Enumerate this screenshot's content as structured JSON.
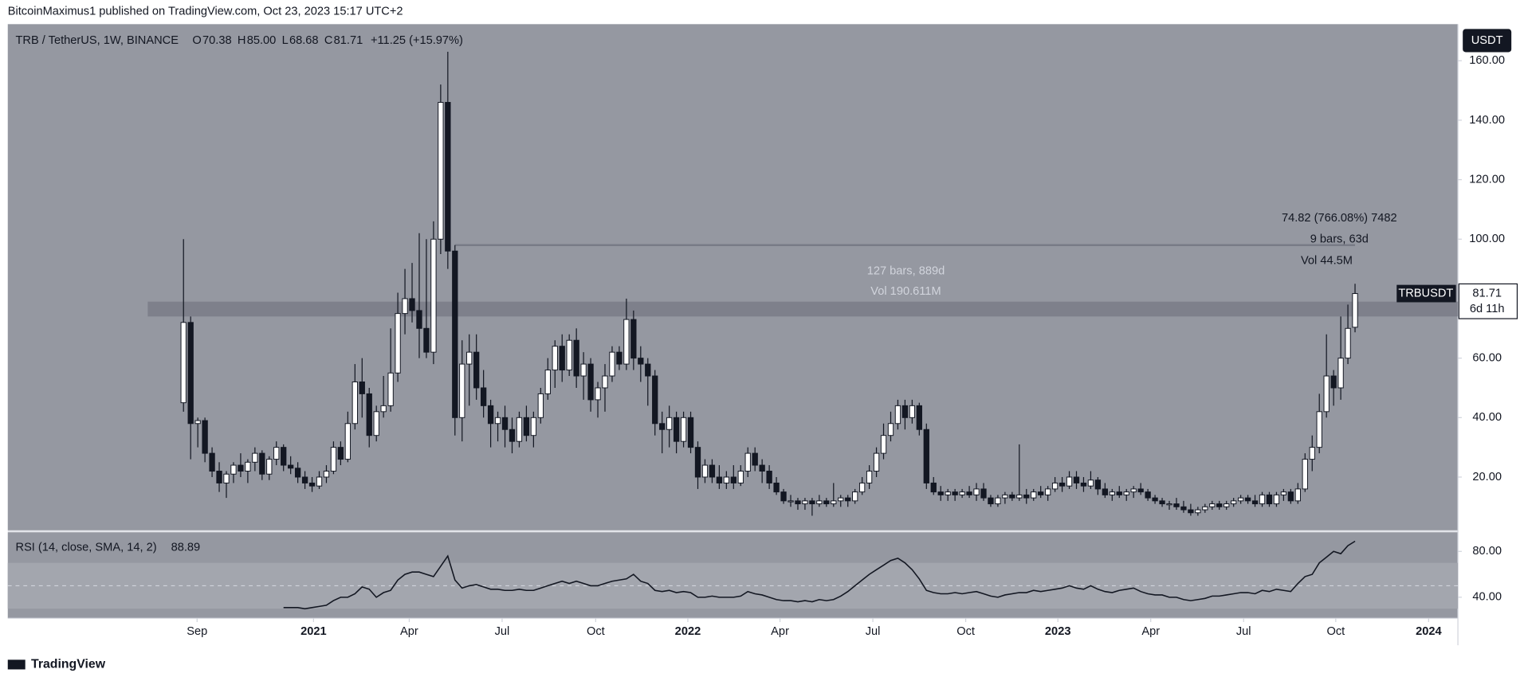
{
  "header": "BitcoinMaximus1 published on TradingView.com, Oct 23, 2023 15:17 UTC+2",
  "footer": "TradingView",
  "currency_button": "USDT",
  "chart_data": {
    "type": "candlestick",
    "symbol": "TRB / TetherUS, 1W, BINANCE",
    "ohlc_legend": [
      {
        "label": "O",
        "value": "70.38"
      },
      {
        "label": "H",
        "value": "85.00"
      },
      {
        "label": "L",
        "value": "68.68"
      },
      {
        "label": "C",
        "value": "81.71"
      }
    ],
    "change": "+11.25 (+15.97%)",
    "up_color": "#ffffff",
    "down_color": "#131722",
    "open": [
      45,
      72,
      38,
      39,
      28,
      22,
      18,
      21,
      24,
      22,
      25,
      28,
      21,
      26,
      30,
      24,
      23,
      20,
      18,
      17,
      20,
      22,
      30,
      26,
      38,
      52,
      48,
      34,
      42,
      44,
      55,
      75,
      80,
      76,
      70,
      62,
      100,
      146,
      96,
      40,
      58,
      62,
      50,
      44,
      38,
      40,
      36,
      32,
      40,
      34,
      40,
      48,
      56,
      64,
      56,
      66,
      54,
      58,
      46,
      50,
      54,
      62,
      58,
      73,
      60,
      58,
      54,
      38,
      36,
      40,
      32,
      40,
      30,
      20,
      24,
      20,
      18,
      20,
      18,
      22,
      28,
      24,
      22,
      18,
      15,
      12,
      12,
      11,
      12,
      11,
      12,
      11,
      12,
      13,
      12,
      15,
      18,
      22,
      28,
      34,
      38,
      44,
      40,
      44,
      36,
      18,
      15,
      14,
      15,
      14,
      15,
      14,
      16,
      13,
      11,
      13,
      14,
      13,
      14,
      13,
      15,
      14,
      16,
      18,
      17,
      20,
      18,
      17,
      19,
      16,
      14,
      15,
      14,
      15,
      16,
      15,
      13,
      12,
      11,
      11,
      10,
      9,
      8,
      9,
      10,
      11,
      10,
      11,
      12,
      13,
      12,
      11,
      14,
      11,
      14,
      15,
      12,
      16,
      26,
      30,
      42,
      54,
      50,
      60,
      70.38
    ],
    "high": [
      100,
      74,
      40,
      40,
      30,
      25,
      22,
      25,
      28,
      26,
      30,
      29,
      27,
      32,
      31,
      27,
      25,
      22,
      20,
      22,
      24,
      32,
      32,
      42,
      58,
      60,
      50,
      44,
      54,
      70,
      82,
      90,
      92,
      102,
      100,
      106,
      152,
      163,
      98,
      66,
      68,
      68,
      56,
      46,
      42,
      44,
      40,
      42,
      44,
      42,
      50,
      60,
      66,
      68,
      68,
      70,
      62,
      60,
      52,
      58,
      64,
      64,
      80,
      76,
      64,
      60,
      56,
      42,
      44,
      42,
      42,
      42,
      32,
      26,
      26,
      24,
      22,
      24,
      24,
      30,
      30,
      26,
      24,
      20,
      16,
      14,
      13,
      13,
      13,
      14,
      13,
      18,
      14,
      14,
      16,
      20,
      24,
      30,
      38,
      42,
      46,
      46,
      46,
      45,
      38,
      20,
      17,
      16,
      16,
      16,
      17,
      18,
      18,
      14,
      14,
      15,
      15,
      31,
      16,
      16,
      17,
      17,
      20,
      20,
      22,
      22,
      20,
      22,
      20,
      18,
      16,
      17,
      16,
      17,
      18,
      16,
      14,
      13,
      12,
      13,
      12,
      11,
      10,
      11,
      12,
      12,
      12,
      13,
      14,
      14,
      14,
      15,
      15,
      15,
      16,
      16,
      18,
      28,
      34,
      48,
      68,
      56,
      74,
      78,
      85.0
    ],
    "low": [
      42,
      26,
      30,
      25,
      20,
      15,
      13,
      18,
      20,
      18,
      22,
      19,
      19,
      24,
      22,
      21,
      18,
      16,
      15,
      16,
      18,
      21,
      24,
      25,
      36,
      40,
      30,
      32,
      40,
      42,
      52,
      68,
      72,
      60,
      60,
      58,
      95,
      90,
      34,
      32,
      44,
      46,
      40,
      30,
      32,
      30,
      28,
      30,
      32,
      30,
      38,
      46,
      50,
      52,
      54,
      50,
      46,
      42,
      40,
      42,
      52,
      56,
      56,
      56,
      52,
      44,
      34,
      28,
      30,
      28,
      30,
      28,
      16,
      18,
      18,
      16,
      16,
      16,
      17,
      20,
      22,
      18,
      16,
      14,
      11,
      10,
      9,
      9,
      7,
      10,
      10,
      10,
      10,
      10,
      11,
      14,
      16,
      20,
      26,
      32,
      36,
      36,
      38,
      34,
      16,
      14,
      12,
      12,
      12,
      13,
      13,
      12,
      12,
      10,
      10,
      11,
      12,
      12,
      11,
      12,
      13,
      12,
      15,
      15,
      16,
      16,
      15,
      16,
      14,
      13,
      12,
      13,
      12,
      13,
      14,
      12,
      11,
      10,
      9,
      9,
      8,
      7,
      7,
      8,
      9,
      9,
      9,
      10,
      11,
      11,
      10,
      10,
      10,
      10,
      12,
      11,
      11,
      15,
      22,
      28,
      40,
      44,
      46,
      58,
      68.68
    ],
    "close": [
      72,
      38,
      39,
      28,
      22,
      18,
      21,
      24,
      22,
      25,
      28,
      21,
      26,
      30,
      24,
      23,
      20,
      18,
      17,
      20,
      22,
      30,
      26,
      38,
      52,
      48,
      34,
      42,
      44,
      55,
      75,
      80,
      76,
      70,
      62,
      100,
      146,
      96,
      40,
      58,
      62,
      50,
      44,
      38,
      40,
      36,
      32,
      40,
      34,
      40,
      48,
      56,
      64,
      56,
      66,
      54,
      58,
      46,
      50,
      54,
      62,
      58,
      73,
      60,
      58,
      54,
      38,
      36,
      40,
      32,
      40,
      30,
      20,
      24,
      20,
      18,
      20,
      18,
      22,
      28,
      24,
      22,
      18,
      15,
      12,
      12,
      11,
      12,
      11,
      12,
      11,
      12,
      13,
      12,
      15,
      18,
      22,
      28,
      34,
      38,
      44,
      40,
      44,
      36,
      18,
      15,
      14,
      15,
      14,
      15,
      14,
      16,
      13,
      11,
      13,
      14,
      13,
      14,
      13,
      15,
      14,
      16,
      18,
      17,
      20,
      18,
      17,
      19,
      16,
      14,
      15,
      14,
      15,
      16,
      15,
      13,
      12,
      11,
      11,
      10,
      9,
      8,
      9,
      10,
      11,
      10,
      11,
      12,
      13,
      12,
      11,
      14,
      11,
      14,
      15,
      12,
      16,
      26,
      30,
      42,
      54,
      50,
      60,
      70,
      81.71
    ],
    "xlim": [
      -24.6,
      178.4
    ],
    "xticks": [
      {
        "value": 1.9,
        "label": "Sep"
      },
      {
        "value": 18.2,
        "label": "2021"
      },
      {
        "value": 31.6,
        "label": "Apr"
      },
      {
        "value": 44.6,
        "label": "Jul"
      },
      {
        "value": 57.7,
        "label": "Oct"
      },
      {
        "value": 70.6,
        "label": "2022"
      },
      {
        "value": 83.5,
        "label": "Apr"
      },
      {
        "value": 96.5,
        "label": "Jul"
      },
      {
        "value": 109.5,
        "label": "Oct"
      },
      {
        "value": 122.4,
        "label": "2023"
      },
      {
        "value": 135.4,
        "label": "Apr"
      },
      {
        "value": 148.4,
        "label": "Jul"
      },
      {
        "value": 161.3,
        "label": "Oct"
      },
      {
        "value": 174.3,
        "label": "2024"
      }
    ],
    "ylim": [
      2.1,
      172.3
    ],
    "yticks": [
      {
        "value": 20,
        "label": "20.00"
      },
      {
        "value": 40,
        "label": "40.00"
      },
      {
        "value": 60,
        "label": "60.00"
      },
      {
        "value": 80,
        "label": "80.00"
      },
      {
        "value": 100,
        "label": "100.00"
      },
      {
        "value": 120,
        "label": "120.00"
      },
      {
        "value": 140,
        "label": "140.00"
      },
      {
        "value": 160,
        "label": "160.00"
      }
    ],
    "zone": [
      74,
      79
    ],
    "level_line": 98,
    "price_tag": {
      "name": "TRBUSDT",
      "value": "81.71",
      "countdown": "6d 11h"
    },
    "annotations": {
      "long": [
        "127 bars, 889d",
        "Vol 190.611M"
      ],
      "short": [
        "74.82 (766.08%) 7482",
        "9 bars, 63d",
        "Vol 44.5M"
      ]
    },
    "rsi": {
      "label": "RSI (14, close, SMA, 14, 2)",
      "last": "88.89",
      "color": "#131722",
      "ylim": [
        21.7,
        96.7
      ],
      "yticks": [
        {
          "value": 40,
          "label": "40.00"
        },
        {
          "value": 80,
          "label": "80.00"
        }
      ],
      "band": [
        30,
        70
      ],
      "midline": 50,
      "values": [
        null,
        null,
        null,
        null,
        null,
        null,
        null,
        null,
        null,
        null,
        null,
        null,
        null,
        null,
        31,
        31,
        31,
        30,
        31,
        32,
        33,
        37,
        40,
        40,
        43,
        49,
        47,
        40,
        44,
        46,
        55,
        60,
        62,
        62,
        60,
        58,
        67,
        76,
        55,
        48,
        50,
        51,
        49,
        47,
        47,
        46,
        46,
        47,
        46,
        46,
        48,
        50,
        52,
        54,
        52,
        54,
        52,
        50,
        50,
        52,
        54,
        55,
        56,
        60,
        54,
        52,
        46,
        45,
        46,
        44,
        45,
        44,
        40,
        40,
        41,
        40,
        40,
        40,
        41,
        45,
        43,
        42,
        40,
        38,
        37,
        37,
        36,
        37,
        36,
        38,
        37,
        38,
        41,
        45,
        50,
        55,
        60,
        64,
        68,
        72,
        74,
        70,
        64,
        56,
        46,
        44,
        43,
        43,
        44,
        43,
        44,
        45,
        43,
        41,
        40,
        42,
        43,
        44,
        44,
        46,
        45,
        46,
        47,
        48,
        50,
        48,
        47,
        50,
        47,
        45,
        44,
        46,
        47,
        48,
        45,
        43,
        42,
        42,
        40,
        40,
        38,
        37,
        38,
        39,
        41,
        41,
        42,
        43,
        44,
        44,
        43,
        46,
        45,
        47,
        46,
        45,
        52,
        58,
        60,
        70,
        75,
        80,
        78,
        85,
        88.89
      ]
    }
  }
}
